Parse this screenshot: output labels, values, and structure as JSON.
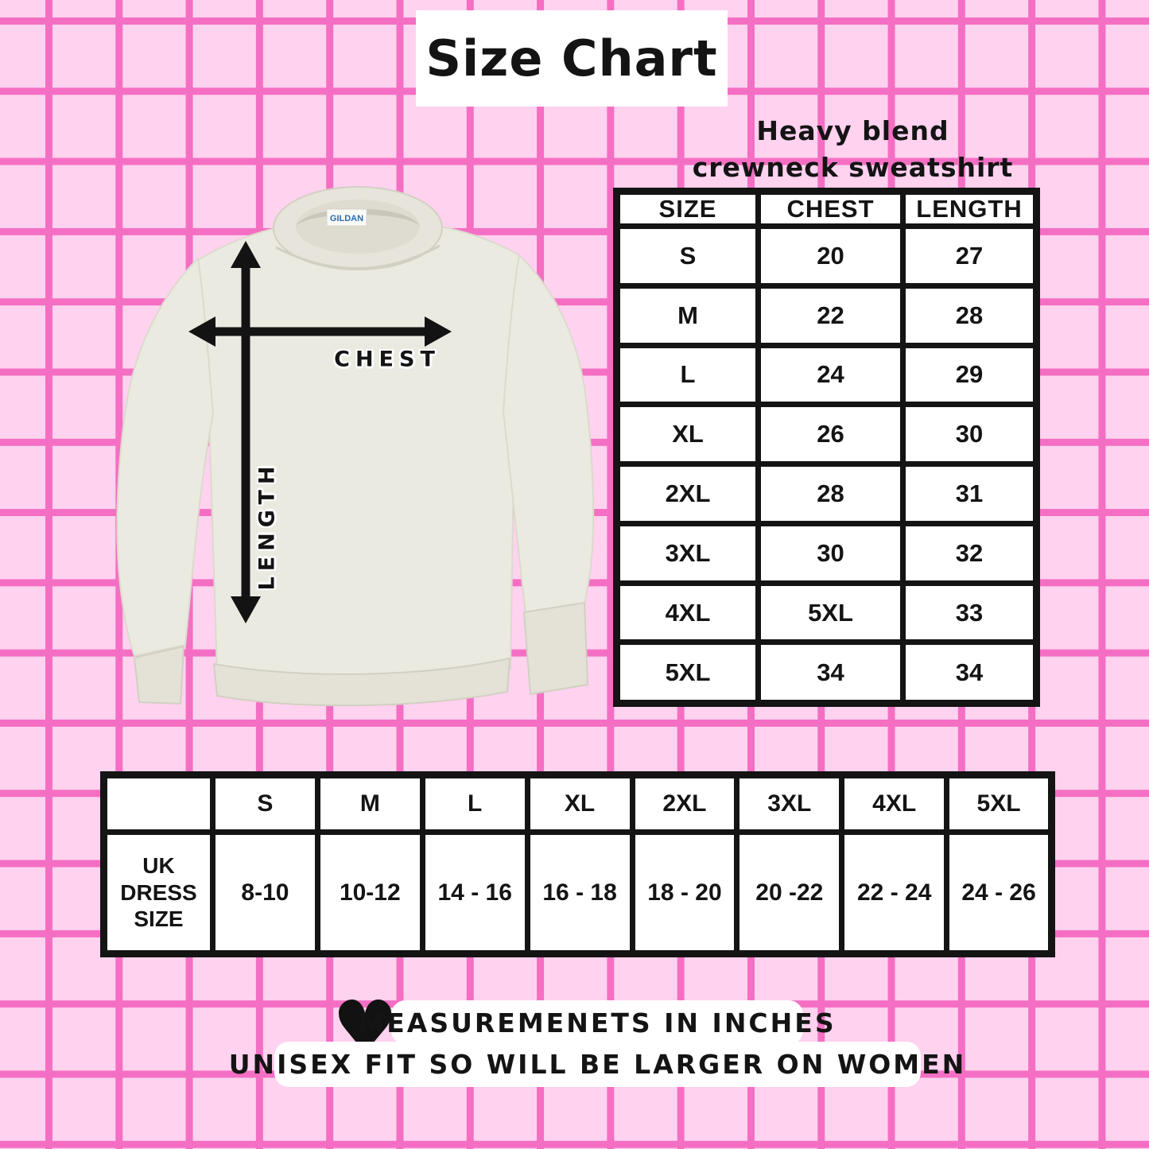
{
  "page": {
    "title": "Size Chart",
    "subtitle_line1": "Heavy blend",
    "subtitle_line2": "crewneck sweatshirt"
  },
  "diagram": {
    "chest_label": "CHEST",
    "length_label": "LENGTH",
    "brand_tag": "GILDAN"
  },
  "main_table": {
    "columns": [
      "SIZE",
      "CHEST",
      "LENGTH"
    ],
    "rows": [
      [
        "S",
        "20",
        "27"
      ],
      [
        "M",
        "22",
        "28"
      ],
      [
        "L",
        "24",
        "29"
      ],
      [
        "XL",
        "26",
        "30"
      ],
      [
        "2XL",
        "28",
        "31"
      ],
      [
        "3XL",
        "30",
        "32"
      ],
      [
        "4XL",
        "5XL",
        "33"
      ],
      [
        "5XL",
        "34",
        "34"
      ]
    ]
  },
  "uk_table": {
    "row_label": [
      "UK",
      "DRESS",
      "SIZE"
    ],
    "columns": [
      "S",
      "M",
      "L",
      "XL",
      "2XL",
      "3XL",
      "4XL",
      "5XL"
    ],
    "values": [
      "8-10",
      "10-12",
      "14 - 16",
      "16 - 18",
      "18 - 20",
      "20 -22",
      "22 - 24",
      "24 - 26"
    ]
  },
  "footnotes": {
    "heart_icon": "♥",
    "line1": "MEASUREMENETS IN INCHES",
    "line2": "UNISEX FIT SO WILL BE LARGER ON WOMEN"
  },
  "colors": {
    "background_pink": "#FFD2EF",
    "grid_line_pink": "#F46FC3",
    "ink_black": "#141414",
    "sweatshirt_cream": "#EBEAE1",
    "tag_blue": "#2B6BB3"
  }
}
